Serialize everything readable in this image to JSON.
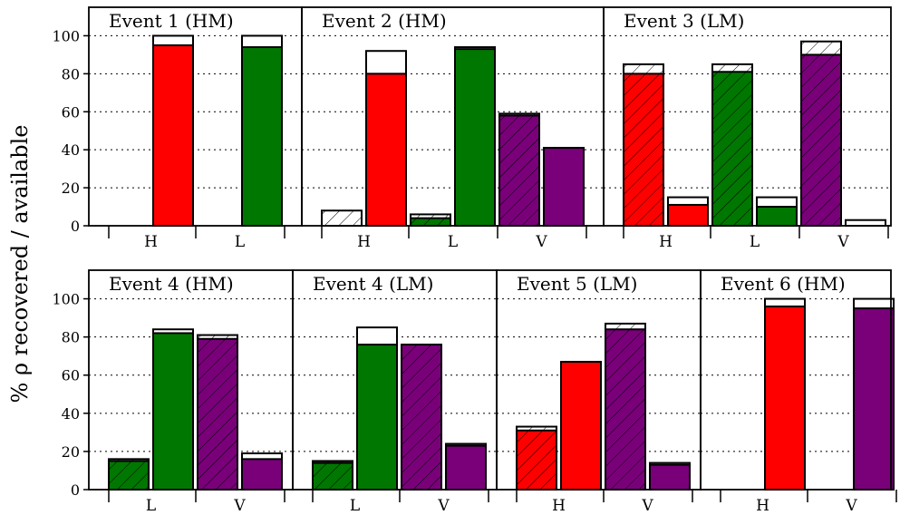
{
  "figure": {
    "ylabel": "% ρ recovered / available",
    "yticks": [
      0,
      20,
      40,
      60,
      80,
      100
    ]
  },
  "colors": {
    "H": "#ff0000",
    "L": "#007700",
    "V": "#7a007a"
  },
  "chart_data": [
    {
      "type": "bar",
      "title": "Event 1 (HM)",
      "categories": [
        "H",
        "L"
      ],
      "ylim": [
        0,
        115
      ],
      "grid": "horizontal-dotted",
      "series": [
        {
          "name": "",
          "cat": "H",
          "hatched": true,
          "value": 0,
          "total": 0
        },
        {
          "name": "",
          "cat": "H",
          "hatched": false,
          "value": 95,
          "total": 100
        },
        {
          "name": "",
          "cat": "L",
          "hatched": true,
          "value": 0,
          "total": 0
        },
        {
          "name": "",
          "cat": "L",
          "hatched": false,
          "value": 94,
          "total": 100
        }
      ]
    },
    {
      "type": "bar",
      "title": "Event 2 (HM)",
      "categories": [
        "H",
        "L",
        "V"
      ],
      "ylim": [
        0,
        115
      ],
      "grid": "horizontal-dotted",
      "series": [
        {
          "name": "",
          "cat": "H",
          "hatched": true,
          "value": 0,
          "total": 8
        },
        {
          "name": "",
          "cat": "H",
          "hatched": false,
          "value": 80,
          "total": 92
        },
        {
          "name": "",
          "cat": "L",
          "hatched": true,
          "value": 4,
          "total": 6
        },
        {
          "name": "",
          "cat": "L",
          "hatched": false,
          "value": 93,
          "total": 94
        },
        {
          "name": "",
          "cat": "V",
          "hatched": true,
          "value": 58,
          "total": 59
        },
        {
          "name": "",
          "cat": "V",
          "hatched": false,
          "value": 41,
          "total": 41
        }
      ]
    },
    {
      "type": "bar",
      "title": "Event 3 (LM)",
      "categories": [
        "H",
        "L",
        "V"
      ],
      "ylim": [
        0,
        115
      ],
      "grid": "horizontal-dotted",
      "series": [
        {
          "name": "",
          "cat": "H",
          "hatched": true,
          "value": 80,
          "total": 85
        },
        {
          "name": "",
          "cat": "H",
          "hatched": false,
          "value": 11,
          "total": 15
        },
        {
          "name": "",
          "cat": "L",
          "hatched": true,
          "value": 81,
          "total": 85
        },
        {
          "name": "",
          "cat": "L",
          "hatched": false,
          "value": 10,
          "total": 15
        },
        {
          "name": "",
          "cat": "V",
          "hatched": true,
          "value": 90,
          "total": 97
        },
        {
          "name": "",
          "cat": "V",
          "hatched": false,
          "value": 0,
          "total": 3
        }
      ]
    },
    {
      "type": "bar",
      "title": "Event 4 (HM)",
      "categories": [
        "L",
        "V"
      ],
      "ylim": [
        0,
        115
      ],
      "grid": "horizontal-dotted",
      "series": [
        {
          "name": "",
          "cat": "L",
          "hatched": true,
          "value": 15,
          "total": 16
        },
        {
          "name": "",
          "cat": "L",
          "hatched": false,
          "value": 82,
          "total": 84
        },
        {
          "name": "",
          "cat": "V",
          "hatched": true,
          "value": 79,
          "total": 81
        },
        {
          "name": "",
          "cat": "V",
          "hatched": false,
          "value": 16,
          "total": 19
        }
      ]
    },
    {
      "type": "bar",
      "title": "Event 4 (LM)",
      "categories": [
        "L",
        "V"
      ],
      "ylim": [
        0,
        115
      ],
      "grid": "horizontal-dotted",
      "series": [
        {
          "name": "",
          "cat": "L",
          "hatched": true,
          "value": 14,
          "total": 15
        },
        {
          "name": "",
          "cat": "L",
          "hatched": false,
          "value": 76,
          "total": 85
        },
        {
          "name": "",
          "cat": "V",
          "hatched": true,
          "value": 76,
          "total": 76
        },
        {
          "name": "",
          "cat": "V",
          "hatched": false,
          "value": 23,
          "total": 24
        }
      ]
    },
    {
      "type": "bar",
      "title": "Event 5 (LM)",
      "categories": [
        "H",
        "V"
      ],
      "ylim": [
        0,
        115
      ],
      "grid": "horizontal-dotted",
      "series": [
        {
          "name": "",
          "cat": "H",
          "hatched": true,
          "value": 31,
          "total": 33
        },
        {
          "name": "",
          "cat": "H",
          "hatched": false,
          "value": 67,
          "total": 67
        },
        {
          "name": "",
          "cat": "V",
          "hatched": true,
          "value": 84,
          "total": 87
        },
        {
          "name": "",
          "cat": "V",
          "hatched": false,
          "value": 13,
          "total": 14
        }
      ]
    },
    {
      "type": "bar",
      "title": "Event 6 (HM)",
      "categories": [
        "H",
        "V"
      ],
      "ylim": [
        0,
        115
      ],
      "grid": "horizontal-dotted",
      "series": [
        {
          "name": "",
          "cat": "H",
          "hatched": true,
          "value": 0,
          "total": 0
        },
        {
          "name": "",
          "cat": "H",
          "hatched": false,
          "value": 96,
          "total": 100
        },
        {
          "name": "",
          "cat": "V",
          "hatched": true,
          "value": 0,
          "total": 0
        },
        {
          "name": "",
          "cat": "V",
          "hatched": false,
          "value": 95,
          "total": 100
        }
      ]
    }
  ]
}
